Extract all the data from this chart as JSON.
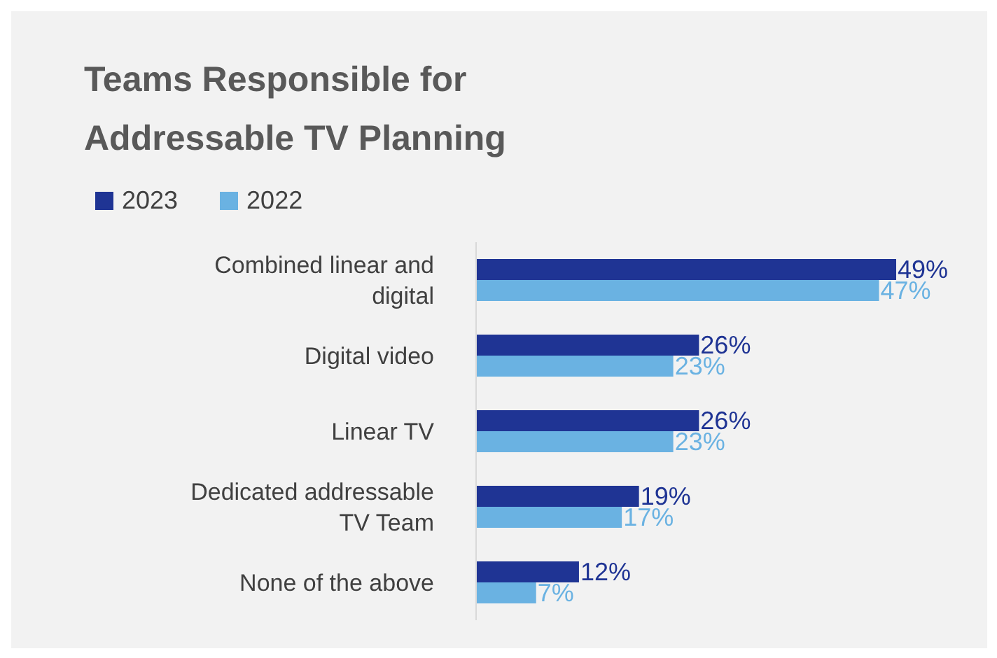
{
  "chart_data": {
    "type": "bar",
    "orientation": "horizontal",
    "title": "Teams Responsible for Addressable TV Planning",
    "categories": [
      "Combined linear and digital",
      "Digital video",
      "Linear TV",
      "Dedicated addressable TV Team",
      "None of the above"
    ],
    "series": [
      {
        "name": "2023",
        "color": "#1f3494",
        "values": [
          49,
          26,
          26,
          19,
          12
        ],
        "value_labels": [
          "49%",
          "26%",
          "26%",
          "19%",
          "12%"
        ]
      },
      {
        "name": "2022",
        "color": "#6ab2e2",
        "values": [
          47,
          23,
          23,
          17,
          7
        ],
        "value_labels": [
          "47%",
          "23%",
          "23%",
          "17%",
          "7%"
        ]
      }
    ],
    "legend": "top left",
    "grid": false
  }
}
